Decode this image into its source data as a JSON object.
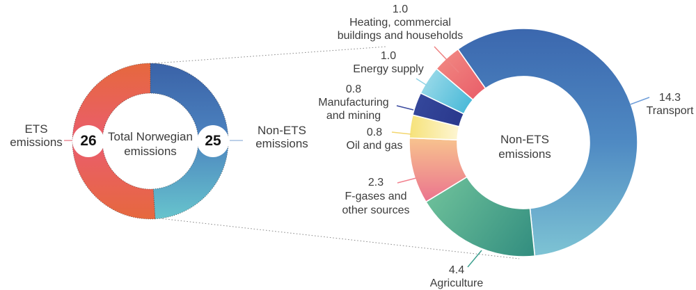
{
  "figure": {
    "background": "#ffffff",
    "text_color": "#3c3c3c",
    "dotted_guide_color": "#8a8a8a"
  },
  "chart_data": {
    "type": "donut-pair",
    "small": {
      "center_lines": [
        "Total Norwegian",
        "emissions"
      ],
      "slices": [
        {
          "label": "Non-ETS emissions",
          "value": 25,
          "display": {
            "value": "25",
            "lines": [
              "Non-ETS",
              "emissions"
            ]
          },
          "accent": "#a6c1e0",
          "gradient": [
            [
              0,
              "#3a62a7"
            ],
            [
              0.45,
              "#4b81be"
            ],
            [
              1,
              "#67c4cd"
            ]
          ]
        },
        {
          "label": "ETS emissions",
          "value": 26,
          "display": {
            "value": "26",
            "lines": [
              "ETS",
              "emissions"
            ]
          },
          "accent": "#ec8e98",
          "gradient": [
            [
              0,
              "#e6683e"
            ],
            [
              0.5,
              "#ea5d6d"
            ],
            [
              1,
              "#e6683e"
            ]
          ]
        }
      ]
    },
    "large": {
      "center_lines": [
        "Non-ETS",
        "emissions"
      ],
      "slices": [
        {
          "label": "Transport",
          "value": 14.3,
          "display": {
            "value": "14.3",
            "lines": [
              "Transport"
            ]
          },
          "accent": "#6f9ed9",
          "gradient": [
            [
              0,
              "#3b67ae"
            ],
            [
              0.5,
              "#4f8ac3"
            ],
            [
              1,
              "#7ec4d4"
            ]
          ]
        },
        {
          "label": "Agriculture",
          "value": 4.4,
          "display": {
            "value": "4.4",
            "lines": [
              "Agriculture"
            ]
          },
          "accent": "#3da08f",
          "gradient": [
            [
              0,
              "#72c49c"
            ],
            [
              1,
              "#2d897d"
            ]
          ]
        },
        {
          "label": "F-gases and other sources",
          "value": 2.3,
          "display": {
            "value": "2.3",
            "lines": [
              "F-gases and",
              "other sources"
            ]
          },
          "accent": "#f2808d",
          "gradient": [
            [
              0,
              "#f8c68e"
            ],
            [
              1,
              "#ea6f8e"
            ]
          ]
        },
        {
          "label": "Oil and gas",
          "value": 0.8,
          "display": {
            "value": "0.8",
            "lines": [
              "Oil and gas"
            ]
          },
          "accent": "#f3d66e",
          "gradient": [
            [
              0,
              "#f6e279"
            ],
            [
              1,
              "#fdf5d0"
            ]
          ]
        },
        {
          "label": "Manufacturing and mining",
          "value": 0.8,
          "display": {
            "value": "0.8",
            "lines": [
              "Manufacturing",
              "and mining"
            ]
          },
          "accent": "#39499e",
          "gradient": [
            [
              0,
              "#35489c"
            ],
            [
              1,
              "#2b3a8e"
            ]
          ]
        },
        {
          "label": "Energy supply",
          "value": 1.0,
          "display": {
            "value": "1.0",
            "lines": [
              "Energy supply"
            ]
          },
          "accent": "#8ed3e6",
          "gradient": [
            [
              0,
              "#9fdcea"
            ],
            [
              1,
              "#49b9d8"
            ]
          ]
        },
        {
          "label": "Heating, commercial buildings and households",
          "value": 1.0,
          "display": {
            "value": "1.0",
            "lines": [
              "Heating, commercial",
              "buildings and households"
            ]
          },
          "accent": "#ee8282",
          "gradient": [
            [
              0,
              "#f0837f"
            ],
            [
              1,
              "#ea636c"
            ]
          ]
        }
      ]
    }
  }
}
